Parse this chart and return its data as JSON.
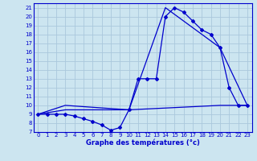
{
  "xlabel": "Graphe des températures (°c)",
  "bg_color": "#cce5f0",
  "plot_bg_color": "#cce5f0",
  "grid_color": "#aac8dc",
  "line_color": "#0000cc",
  "ylim": [
    7,
    21.5
  ],
  "xlim": [
    -0.5,
    23.5
  ],
  "yticks": [
    7,
    8,
    9,
    10,
    11,
    12,
    13,
    14,
    15,
    16,
    17,
    18,
    19,
    20,
    21
  ],
  "xticks": [
    0,
    1,
    2,
    3,
    4,
    5,
    6,
    7,
    8,
    9,
    10,
    11,
    12,
    13,
    14,
    15,
    16,
    17,
    18,
    19,
    20,
    21,
    22,
    23
  ],
  "line1_x": [
    0,
    1,
    2,
    3,
    4,
    5,
    6,
    7,
    8,
    9,
    10,
    11,
    12,
    13,
    14,
    15,
    16,
    17,
    18,
    19,
    20,
    21,
    22,
    23
  ],
  "line1_y": [
    9,
    9,
    9,
    9,
    8.8,
    8.5,
    8.2,
    7.8,
    7.2,
    7.5,
    9.5,
    13,
    13,
    13,
    20,
    21,
    20.5,
    19.5,
    18.5,
    18,
    16.5,
    12,
    10,
    10
  ],
  "line2_x": [
    0,
    3,
    10,
    20,
    23
  ],
  "line2_y": [
    9,
    9.5,
    9.5,
    10,
    10
  ],
  "line3_x": [
    0,
    3,
    10,
    14,
    20,
    23
  ],
  "line3_y": [
    9,
    10,
    9.5,
    21,
    16.5,
    10
  ]
}
